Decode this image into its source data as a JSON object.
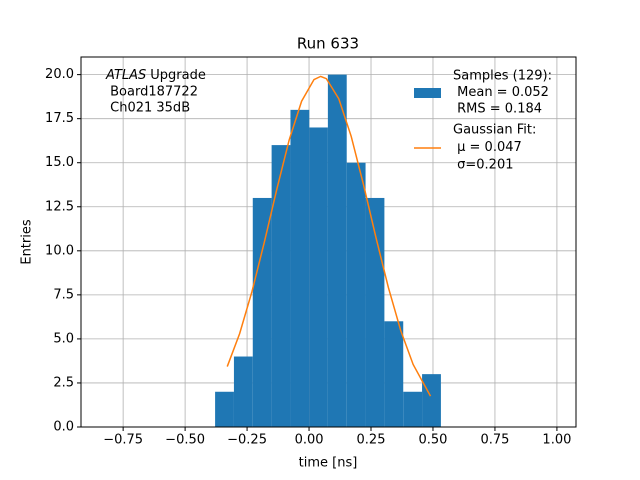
{
  "chart_data": {
    "type": "histogram",
    "title": "Run 633",
    "xlabel": "time [ns]",
    "ylabel": "Entries",
    "bins": [
      -0.379,
      -0.303,
      -0.227,
      -0.151,
      -0.075,
      0.001,
      0.076,
      0.152,
      0.228,
      0.304,
      0.38,
      0.456,
      0.532
    ],
    "counts": [
      2,
      4,
      13,
      16,
      18,
      17,
      20,
      15,
      13,
      6,
      2,
      3
    ],
    "color": "#1f77b4",
    "hist_legend": [
      "Samples (129):",
      " Mean = 0.052",
      " RMS = 0.184"
    ],
    "fit": {
      "legend": [
        "Gaussian Fit:",
        " μ = 0.047",
        " σ=0.201"
      ],
      "color": "#ff7f0e",
      "x": [
        -0.33,
        -0.28,
        -0.23,
        -0.18,
        -0.13,
        -0.08,
        -0.03,
        0.02,
        0.047,
        0.07,
        0.12,
        0.17,
        0.22,
        0.27,
        0.32,
        0.37,
        0.42,
        0.49
      ],
      "values": [
        3.43,
        5.3,
        7.7,
        10.51,
        13.5,
        16.3,
        18.49,
        19.72,
        19.9,
        19.77,
        18.63,
        16.5,
        13.74,
        10.75,
        7.92,
        5.47,
        3.55,
        1.75
      ]
    },
    "annotation": {
      "italic": "ATLAS",
      "lines": [
        "Upgrade",
        " Board187722",
        " Ch021 35dB"
      ]
    },
    "xlim": [
      -0.92,
      1.077
    ],
    "ylim": [
      0,
      21
    ],
    "xticks": [
      {
        "value": -0.75,
        "label": "−0.75"
      },
      {
        "value": -0.5,
        "label": "−0.50"
      },
      {
        "value": -0.25,
        "label": "−0.25"
      },
      {
        "value": 0,
        "label": "0.00"
      },
      {
        "value": 0.25,
        "label": "0.25"
      },
      {
        "value": 0.5,
        "label": "0.50"
      },
      {
        "value": 0.75,
        "label": "0.75"
      },
      {
        "value": 1,
        "label": "1.00"
      }
    ],
    "yticks": [
      {
        "value": 0,
        "label": "0.0"
      },
      2.5,
      {
        "value": 5,
        "label": "5.0"
      },
      7.5,
      {
        "value": 10,
        "label": "10.0"
      },
      12.5,
      {
        "value": 15,
        "label": "15.0"
      },
      17.5,
      {
        "value": 20,
        "label": "20.0"
      }
    ],
    "grid": true,
    "legend_position": "upper right"
  }
}
